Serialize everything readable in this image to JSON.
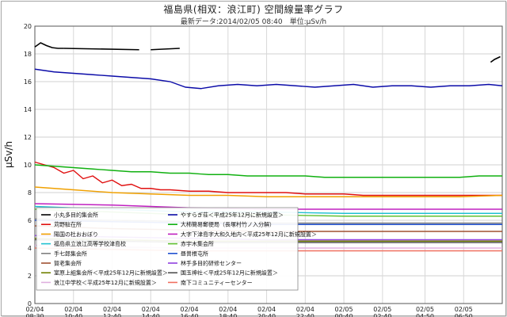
{
  "chart_data": {
    "type": "line",
    "title": "福島県(相双：浪江町) 空間線量率グラフ",
    "subtitle": "最新データ:2014/02/05 08:40　単位:μSv/h",
    "ylabel": "μSv/h",
    "xlabel": "",
    "ylim": [
      0,
      20
    ],
    "yticks": [
      0,
      2,
      4,
      6,
      8,
      10,
      12,
      14,
      16,
      18,
      20
    ],
    "grid": true,
    "legend_position": "lower-left",
    "x_ticks": [
      {
        "date": "02/04",
        "time": "08:30",
        "x": 0
      },
      {
        "date": "02/04",
        "time": "10:40",
        "x": 2
      },
      {
        "date": "02/04",
        "time": "12:40",
        "x": 4
      },
      {
        "date": "02/04",
        "time": "14:40",
        "x": 6
      },
      {
        "date": "02/04",
        "time": "16:40",
        "x": 8
      },
      {
        "date": "02/04",
        "time": "18:40",
        "x": 10
      },
      {
        "date": "02/04",
        "time": "20:40",
        "x": 12
      },
      {
        "date": "02/04",
        "time": "22:40",
        "x": 14
      },
      {
        "date": "02/05",
        "time": "00:40",
        "x": 16
      },
      {
        "date": "02/05",
        "time": "02:40",
        "x": 18
      },
      {
        "date": "02/05",
        "time": "04:50",
        "x": 20.2
      },
      {
        "date": "02/05",
        "time": "06:50",
        "x": 22.2
      }
    ],
    "x_range": [
      0,
      24.2
    ],
    "series": [
      {
        "name": "小丸多目的集会所",
        "color": "#000000",
        "x": [
          0,
          0.3,
          0.6,
          0.9,
          1.2,
          1.5,
          5.4,
          6.0,
          7.5,
          8.3,
          23.6,
          23.8,
          24.1
        ],
        "y": [
          18.5,
          18.8,
          18.6,
          18.45,
          18.4,
          18.4,
          18.3,
          18.3,
          18.4,
          18.4,
          17.4,
          17.6,
          17.8
        ],
        "segments": [
          [
            0,
            5
          ],
          [
            5,
            6
          ],
          [
            7,
            8
          ],
          [
            10,
            12
          ]
        ]
      },
      {
        "name": "やすらぎ荘＜平成25年12月に新規設置＞",
        "color": "#0b0ba8",
        "x": [
          0,
          1,
          2,
          3,
          4,
          5,
          6,
          7,
          7.8,
          8.6,
          9.5,
          10.5,
          11.5,
          12.5,
          13.5,
          14.5,
          15.5,
          16.5,
          17.5,
          18.5,
          19.5,
          20.5,
          21.5,
          22.5,
          23.5,
          24.2
        ],
        "y": [
          16.9,
          16.7,
          16.6,
          16.5,
          16.4,
          16.3,
          16.2,
          16.0,
          15.6,
          15.5,
          15.7,
          15.8,
          15.7,
          15.8,
          15.7,
          15.6,
          15.7,
          15.8,
          15.6,
          15.7,
          15.7,
          15.6,
          15.7,
          15.7,
          15.8,
          15.7
        ]
      },
      {
        "name": "苅野駐在所",
        "color": "#e01010",
        "x": [
          0,
          0.5,
          1,
          1.5,
          2,
          2.5,
          3,
          3.5,
          4,
          4.5,
          5,
          5.5,
          6,
          6.5,
          7,
          8,
          9,
          10,
          11,
          12,
          13,
          14,
          15,
          16,
          17,
          18,
          19,
          20,
          21,
          22,
          23,
          24.2
        ],
        "y": [
          10.2,
          10.0,
          9.8,
          9.4,
          9.6,
          9.0,
          9.2,
          8.7,
          8.9,
          8.5,
          8.6,
          8.3,
          8.3,
          8.2,
          8.2,
          8.1,
          8.1,
          8.0,
          8.0,
          8.0,
          8.0,
          7.9,
          7.9,
          7.9,
          7.8,
          7.8,
          7.8,
          7.8,
          7.8,
          7.8,
          7.8,
          7.8
        ]
      },
      {
        "name": "大柿簡易郵便局（長塚村竹ノ入分解）",
        "color": "#10b010",
        "x": [
          0,
          1,
          2,
          3,
          4,
          5,
          6,
          7,
          8,
          9,
          10,
          11,
          12,
          13,
          14,
          15,
          16,
          17,
          18,
          19,
          20,
          21,
          22,
          23,
          24.2
        ],
        "y": [
          10.0,
          9.9,
          9.8,
          9.7,
          9.6,
          9.5,
          9.5,
          9.4,
          9.4,
          9.3,
          9.3,
          9.2,
          9.2,
          9.2,
          9.2,
          9.1,
          9.1,
          9.1,
          9.1,
          9.1,
          9.1,
          9.1,
          9.1,
          9.2,
          9.2
        ]
      },
      {
        "name": "陽国の杜おおぼり",
        "color": "#f0a000",
        "x": [
          0,
          2,
          4,
          6,
          8,
          10,
          12,
          14,
          16,
          18,
          20,
          22,
          24.2
        ],
        "y": [
          8.4,
          8.2,
          8.0,
          7.9,
          7.8,
          7.8,
          7.7,
          7.7,
          7.7,
          7.7,
          7.7,
          7.7,
          7.8
        ]
      },
      {
        "name": "大字下津島字大和久地内＜平成25年12月に新規設置＞",
        "color": "#c020c0",
        "x": [
          0,
          4,
          8,
          12,
          16,
          20,
          24.2
        ],
        "y": [
          7.2,
          7.1,
          6.9,
          6.8,
          6.8,
          6.8,
          6.8
        ]
      },
      {
        "name": "福島県立浪江高等学校津島校",
        "color": "#20c0d0",
        "x": [
          0,
          4,
          8,
          12,
          16,
          20,
          24.2
        ],
        "y": [
          7.0,
          6.8,
          6.6,
          6.6,
          6.5,
          6.5,
          6.5
        ]
      },
      {
        "name": "赤宇木集会所",
        "color": "#60c030",
        "x": [
          0,
          4,
          8,
          12,
          16,
          20,
          24.2
        ],
        "y": [
          6.8,
          6.6,
          6.4,
          6.4,
          6.3,
          6.3,
          6.3
        ]
      },
      {
        "name": "手七郎集会所",
        "color": "#808080",
        "x": [
          0,
          4,
          8,
          12,
          16,
          20,
          24.2
        ],
        "y": [
          6.1,
          6.0,
          5.9,
          5.8,
          5.8,
          5.8,
          5.8
        ]
      },
      {
        "name": "昼曽根屯所",
        "color": "#2050d0",
        "x": [
          0,
          4,
          8,
          12,
          16,
          20,
          24.2
        ],
        "y": [
          6.0,
          5.9,
          5.8,
          5.7,
          5.7,
          5.7,
          5.7
        ]
      },
      {
        "name": "賀老集会所",
        "color": "#a05030",
        "x": [
          0,
          4,
          8,
          12,
          16,
          20,
          24.2
        ],
        "y": [
          5.6,
          5.4,
          5.3,
          5.2,
          5.2,
          5.2,
          5.2
        ]
      },
      {
        "name": "林手多目的研修センター",
        "color": "#9040e0",
        "x": [
          0,
          4,
          8,
          12,
          16,
          20,
          24.2
        ],
        "y": [
          4.9,
          4.8,
          4.7,
          4.6,
          4.6,
          4.6,
          4.6
        ]
      },
      {
        "name": "室原上組集会所＜平成25年12月に新規設置＞",
        "color": "#708000",
        "x": [
          0,
          4,
          8,
          12,
          16,
          20,
          24.2
        ],
        "y": [
          4.7,
          4.6,
          4.5,
          4.5,
          4.5,
          4.5,
          4.5
        ]
      },
      {
        "name": "国玉神社＜平成25年12月に新規設置＞",
        "color": "#505050",
        "x": [
          0,
          4,
          8,
          12,
          16,
          20,
          24.2
        ],
        "y": [
          4.6,
          4.5,
          4.4,
          4.4,
          4.4,
          4.4,
          4.4
        ]
      },
      {
        "name": "浪江中学校＜平成25年12月に新規設置＞",
        "color": "#e0b0e0",
        "x": [
          0,
          4,
          8,
          12,
          16,
          20,
          24.2
        ],
        "y": [
          4.2,
          4.1,
          4.0,
          4.0,
          4.0,
          4.0,
          4.0
        ]
      },
      {
        "name": "南下コミュニティーセンター",
        "color": "#f07060",
        "x": [
          0,
          4,
          8,
          12,
          16,
          20,
          24.2
        ],
        "y": [
          4.0,
          3.9,
          3.8,
          3.8,
          3.8,
          3.8,
          3.8
        ]
      }
    ]
  }
}
